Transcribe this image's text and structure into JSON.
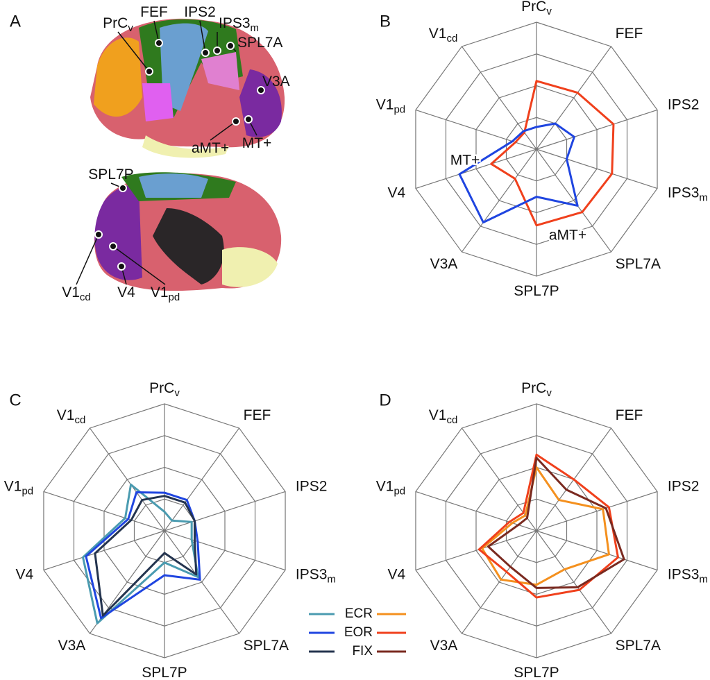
{
  "panels": [
    "A",
    "B",
    "C",
    "D"
  ],
  "brain": {
    "labels": [
      [
        "PrC",
        "v"
      ],
      [
        "FEF"
      ],
      [
        "IPS2"
      ],
      [
        "IPS3",
        "m"
      ],
      [
        "SPL7A"
      ],
      [
        "V3A"
      ],
      [
        "aMT+"
      ],
      [
        "MT+"
      ],
      [
        "SPL7P"
      ],
      [
        "V1",
        "cd"
      ],
      [
        "V4"
      ],
      [
        "V1",
        "pd"
      ]
    ]
  },
  "chart_data": [
    {
      "type": "radar",
      "axes": [
        [
          "PrC",
          "v"
        ],
        [
          "FEF"
        ],
        [
          "IPS2"
        ],
        [
          "IPS3",
          "m"
        ],
        [
          "SPL7A"
        ],
        [
          "SPL7P"
        ],
        [
          "V3A"
        ],
        [
          "V4"
        ],
        [
          "V1",
          "pd"
        ],
        [
          "V1",
          "cd"
        ]
      ],
      "annotations": [
        "MT+",
        "aMT+"
      ],
      "rlim": [
        0,
        4
      ],
      "rticks": [
        1,
        2,
        3,
        4
      ],
      "series": [
        {
          "color": "#f0401c",
          "values": [
            2.15,
            2.2,
            2.55,
            2.5,
            2.45,
            2.4,
            1.15,
            1.5,
            0.7,
            0.65
          ]
        },
        {
          "color": "#1f45e0",
          "values": [
            0.7,
            1.0,
            1.25,
            1.0,
            2.2,
            1.5,
            2.85,
            2.55,
            0.8,
            0.7
          ]
        }
      ]
    },
    {
      "type": "radar",
      "axes": [
        [
          "PrC",
          "v"
        ],
        [
          "FEF"
        ],
        [
          "IPS2"
        ],
        [
          "IPS3",
          "m"
        ],
        [
          "SPL7A"
        ],
        [
          "SPL7P"
        ],
        [
          "V3A"
        ],
        [
          "V4"
        ],
        [
          "V1",
          "pd"
        ],
        [
          "V1",
          "cd"
        ]
      ],
      "rlim": [
        0,
        4
      ],
      "rticks": [
        1,
        2,
        3,
        4
      ],
      "series": [
        {
          "name": "ECR",
          "color": "#4a9bb0",
          "values": [
            0.6,
            0.4,
            0.9,
            0.9,
            1.8,
            1.0,
            3.6,
            2.7,
            1.3,
            1.8
          ]
        },
        {
          "name": "EOR",
          "color": "#1f45e0",
          "values": [
            1.2,
            1.2,
            1.0,
            1.1,
            1.9,
            1.4,
            3.4,
            2.6,
            1.2,
            1.5
          ]
        },
        {
          "name": "FIX",
          "color": "#24344f",
          "values": [
            1.1,
            1.1,
            1.0,
            1.0,
            1.7,
            0.7,
            3.3,
            2.3,
            1.1,
            1.2
          ]
        }
      ]
    },
    {
      "type": "radar",
      "axes": [
        [
          "PrC",
          "v"
        ],
        [
          "FEF"
        ],
        [
          "IPS2"
        ],
        [
          "IPS3",
          "m"
        ],
        [
          "SPL7A"
        ],
        [
          "SPL7P"
        ],
        [
          "V3A"
        ],
        [
          "V4"
        ],
        [
          "V1",
          "pd"
        ],
        [
          "V1",
          "cd"
        ]
      ],
      "rlim": [
        0,
        4
      ],
      "rticks": [
        1,
        2,
        3,
        4
      ],
      "series": [
        {
          "color": "#f4901e",
          "values": [
            2.0,
            1.2,
            2.2,
            2.4,
            1.5,
            1.7,
            1.9,
            1.8,
            0.8,
            0.6
          ]
        },
        {
          "color": "#f0401c",
          "values": [
            2.4,
            2.0,
            2.4,
            2.7,
            2.3,
            2.1,
            1.6,
            1.9,
            0.9,
            0.7
          ]
        },
        {
          "color": "#7a2a20",
          "values": [
            2.3,
            1.6,
            2.3,
            2.9,
            2.2,
            1.8,
            1.4,
            1.6,
            0.6,
            0.5
          ]
        }
      ]
    }
  ]
}
